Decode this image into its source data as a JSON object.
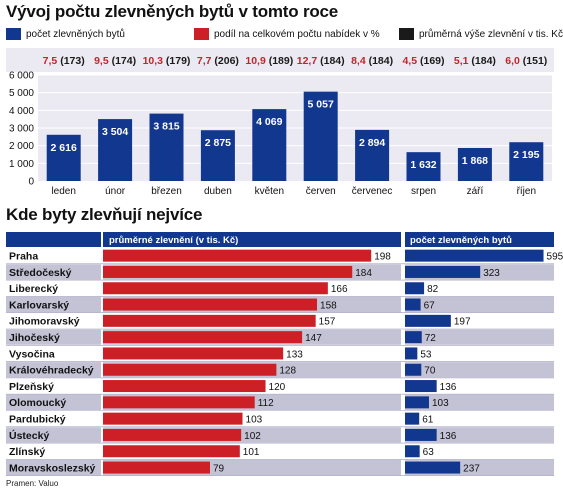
{
  "colors": {
    "blue": "#12378f",
    "red": "#cc2026",
    "dark": "#1a1a1a",
    "band": "#ebeaf2",
    "row_alt": "#c4c3d6",
    "label_red": "#c0262b"
  },
  "chart1": {
    "title": "Vývoj počtu zlevněných bytů v tomto roce",
    "legend": [
      {
        "label": "počet zlevněných bytů",
        "color": "#12378f"
      },
      {
        "label": "podíl na celkovém počtu nabídek v %",
        "color": "#cc2026"
      },
      {
        "label": "průměrná výše zlevnění v tis. Kč",
        "color": "#1a1a1a"
      }
    ]
  },
  "chart2": {
    "title": "Kde byty zlevňují nejvíce",
    "col1_header": "průměrné zlevnění (v tis. Kč)",
    "col2_header": "počet zlevněných bytů"
  },
  "source": "Pramen: Valuo",
  "chart_data": [
    {
      "type": "bar",
      "title": "Vývoj počtu zlevněných bytů v tomto roce",
      "categories": [
        "leden",
        "únor",
        "březen",
        "duben",
        "květen",
        "červen",
        "červenec",
        "srpen",
        "září",
        "říjen"
      ],
      "values": [
        2616,
        3504,
        3815,
        2875,
        4069,
        5057,
        2894,
        1632,
        1868,
        2195
      ],
      "value_labels": [
        "2 616",
        "3 504",
        "3 815",
        "2 875",
        "4 069",
        "5 057",
        "2 894",
        "1 632",
        "1 868",
        "2 195"
      ],
      "share_pct": [
        "7,5",
        "9,5",
        "10,3",
        "7,7",
        "10,9",
        "12,7",
        "8,4",
        "4,5",
        "5,1",
        "6,0"
      ],
      "avg_discount": [
        "(173)",
        "(174)",
        "(179)",
        "(206)",
        "(189)",
        "(184)",
        "(184)",
        "(169)",
        "(184)",
        "(151)"
      ],
      "ylim": [
        0,
        6000
      ],
      "yticks": [
        0,
        1000,
        2000,
        3000,
        4000,
        5000,
        6000
      ],
      "ytick_labels": [
        "0",
        "1 000",
        "2 000",
        "3 000",
        "4 000",
        "5 000",
        "6 000"
      ],
      "grid": true
    },
    {
      "type": "bar",
      "orientation": "horizontal",
      "title": "Kde byty zlevňují nejvíce",
      "categories": [
        "Praha",
        "Středočeský",
        "Liberecký",
        "Karlovarský",
        "Jihomoravský",
        "Jihočeský",
        "Vysočina",
        "Královéhradecký",
        "Plzeňský",
        "Olomoucký",
        "Pardubický",
        "Ústecký",
        "Zlínský",
        "Moravskoslezský"
      ],
      "series": [
        {
          "name": "průměrné zlevnění (v tis. Kč)",
          "values": [
            198,
            184,
            166,
            158,
            157,
            147,
            133,
            128,
            120,
            112,
            103,
            102,
            101,
            79
          ]
        },
        {
          "name": "počet zlevněných bytů",
          "values": [
            595,
            323,
            82,
            67,
            197,
            72,
            53,
            70,
            136,
            103,
            61,
            136,
            63,
            237
          ]
        }
      ]
    }
  ]
}
